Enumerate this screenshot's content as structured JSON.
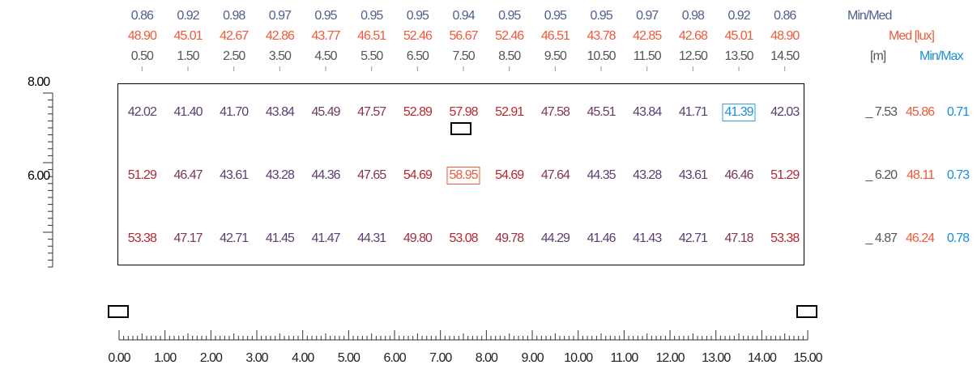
{
  "header_labels": {
    "minmed": "Min/Med",
    "med": "Med [lux]",
    "unit": "[m]",
    "minmax": "Min/Max"
  },
  "colors": {
    "min_med": "#4f5f8f",
    "med": "#ef5a3a",
    "min_max": "#1a8fd6",
    "low_value": "#5b3f73",
    "high_value": "#b8282e"
  },
  "columns": [
    {
      "min_med": "0.86",
      "med": "48.90",
      "pos": "0.50"
    },
    {
      "min_med": "0.92",
      "med": "45.01",
      "pos": "1.50"
    },
    {
      "min_med": "0.98",
      "med": "42.67",
      "pos": "2.50"
    },
    {
      "min_med": "0.97",
      "med": "42.86",
      "pos": "3.50"
    },
    {
      "min_med": "0.95",
      "med": "43.77",
      "pos": "4.50"
    },
    {
      "min_med": "0.95",
      "med": "46.51",
      "pos": "5.50"
    },
    {
      "min_med": "0.95",
      "med": "52.46",
      "pos": "6.50"
    },
    {
      "min_med": "0.94",
      "med": "56.67",
      "pos": "7.50"
    },
    {
      "min_med": "0.95",
      "med": "52.46",
      "pos": "8.50"
    },
    {
      "min_med": "0.95",
      "med": "46.51",
      "pos": "9.50"
    },
    {
      "min_med": "0.95",
      "med": "43.78",
      "pos": "10.50"
    },
    {
      "min_med": "0.97",
      "med": "42.85",
      "pos": "11.50"
    },
    {
      "min_med": "0.98",
      "med": "42.68",
      "pos": "12.50"
    },
    {
      "min_med": "0.92",
      "med": "45.01",
      "pos": "13.50"
    },
    {
      "min_med": "0.86",
      "med": "48.90",
      "pos": "14.50"
    }
  ],
  "rows": [
    {
      "pos": "7.53",
      "med": "45.86",
      "min_max": "0.71",
      "values": [
        "42.02",
        "41.40",
        "41.70",
        "43.84",
        "45.49",
        "47.57",
        "52.89",
        "57.98",
        "52.91",
        "47.58",
        "45.51",
        "43.84",
        "41.71",
        "41.39",
        "42.03"
      ]
    },
    {
      "pos": "6.20",
      "med": "48.11",
      "min_max": "0.73",
      "values": [
        "51.29",
        "46.47",
        "43.61",
        "43.28",
        "44.36",
        "47.65",
        "54.69",
        "58.95",
        "54.69",
        "47.64",
        "44.35",
        "43.28",
        "43.61",
        "46.46",
        "51.29"
      ]
    },
    {
      "pos": "4.87",
      "med": "46.24",
      "min_max": "0.78",
      "values": [
        "53.38",
        "47.17",
        "42.71",
        "41.45",
        "41.47",
        "44.31",
        "49.80",
        "53.08",
        "49.78",
        "44.29",
        "41.46",
        "41.43",
        "42.71",
        "47.18",
        "53.38"
      ]
    }
  ],
  "minimum_value": "41.39",
  "maximum_value": "58.95",
  "y_axis_labels": [
    "8.00",
    "6.00"
  ],
  "x_axis_labels": [
    "0.00",
    "1.00",
    "2.00",
    "3.00",
    "4.00",
    "5.00",
    "6.00",
    "7.00",
    "8.00",
    "9.00",
    "10.00",
    "11.00",
    "12.00",
    "13.00",
    "14.00",
    "15.00"
  ]
}
